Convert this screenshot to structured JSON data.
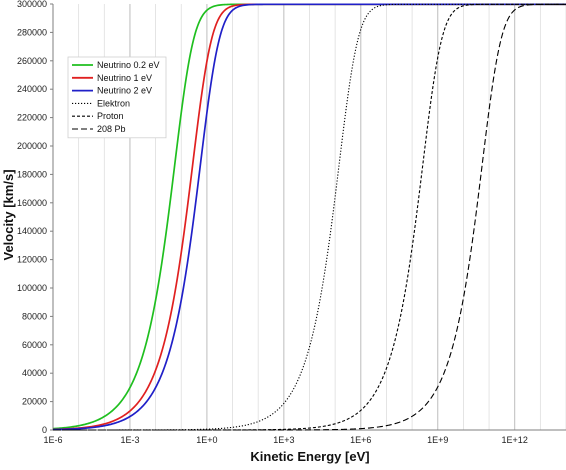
{
  "chart_data": {
    "type": "line",
    "title": "",
    "xlabel": "Kinetic Energy [eV]",
    "ylabel": "Velocity [km/s]",
    "x_scale": "log",
    "xlim": [
      "1E-6",
      "1E+14"
    ],
    "ylim": [
      0,
      300000
    ],
    "y_ticks": [
      0,
      20000,
      40000,
      60000,
      80000,
      100000,
      120000,
      140000,
      160000,
      180000,
      200000,
      220000,
      240000,
      260000,
      280000,
      300000
    ],
    "x_tick_labels": [
      "1E-6",
      "1E-3",
      "1E+0",
      "1E+3",
      "1E+6",
      "1E+9",
      "1E+12"
    ],
    "grid": "vertical major and minor gridlines",
    "legend_position": "upper-left",
    "series": [
      {
        "name": "Neutrino 0.2 eV",
        "color": "#1fbf1f",
        "style": "solid",
        "rest_energy_eV": 0.2
      },
      {
        "name": "Neutrino 1 eV",
        "color": "#e02020",
        "style": "solid",
        "rest_energy_eV": 1
      },
      {
        "name": "Neutrino 2 eV",
        "color": "#2020c8",
        "style": "solid",
        "rest_energy_eV": 2
      },
      {
        "name": "Elektron",
        "color": "#000000",
        "style": "dotted",
        "rest_energy_eV": 511000
      },
      {
        "name": "Proton",
        "color": "#000000",
        "style": "short-dashed",
        "rest_energy_eV": 938272000
      },
      {
        "name": "208 Pb",
        "color": "#000000",
        "style": "long-dashed",
        "rest_energy_eV": 193700000000
      }
    ],
    "speed_of_light_km_s": 299792
  }
}
